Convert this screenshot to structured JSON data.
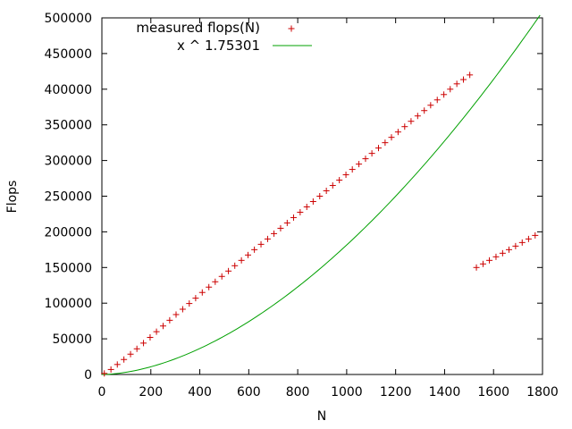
{
  "chart_data": {
    "type": "scatter",
    "title": "",
    "xlabel": "N",
    "ylabel": "Flops",
    "xlim": [
      0,
      1800
    ],
    "ylim": [
      0,
      500000
    ],
    "x_ticks": [
      0,
      200,
      400,
      600,
      800,
      1000,
      1200,
      1400,
      1600,
      1800
    ],
    "y_ticks": [
      0,
      50000,
      100000,
      150000,
      200000,
      250000,
      300000,
      350000,
      400000,
      450000,
      500000
    ],
    "grid": false,
    "legend_position": "top-left",
    "series": [
      {
        "name": "measured flops(N)",
        "kind": "points",
        "marker": "plus",
        "color": "#cc0000",
        "x": [
          10,
          37,
          63,
          90,
          117,
          143,
          170,
          197,
          223,
          250,
          277,
          303,
          330,
          357,
          383,
          410,
          437,
          463,
          490,
          517,
          543,
          570,
          597,
          623,
          650,
          677,
          703,
          730,
          757,
          783,
          810,
          837,
          863,
          890,
          917,
          943,
          970,
          997,
          1023,
          1050,
          1077,
          1103,
          1130,
          1157,
          1183,
          1210,
          1237,
          1263,
          1290,
          1317,
          1343,
          1370,
          1397,
          1423,
          1450,
          1477,
          1503,
          1530,
          1557,
          1583,
          1610,
          1637,
          1663,
          1690,
          1717,
          1743,
          1770
        ],
        "y": [
          1500,
          7000,
          14000,
          21000,
          28500,
          36000,
          44000,
          52000,
          60000,
          68000,
          76000,
          84000,
          91500,
          99500,
          107000,
          115000,
          122500,
          130000,
          137500,
          145000,
          152500,
          160000,
          167500,
          175000,
          182500,
          190000,
          197500,
          205000,
          212500,
          220000,
          227500,
          235000,
          242500,
          250000,
          257500,
          265000,
          272500,
          280000,
          287500,
          295000,
          302500,
          310000,
          317500,
          325000,
          332500,
          340000,
          347500,
          355000,
          362500,
          370000,
          377500,
          385000,
          392500,
          400000,
          407500,
          413500,
          420000,
          150000,
          155000,
          160000,
          165000,
          170000,
          175000,
          180000,
          185000,
          190000,
          195000
        ]
      },
      {
        "name": "x ^ 1.75301",
        "kind": "line",
        "color": "#00a000",
        "exponent": 1.75301,
        "x_range": [
          0,
          1790
        ]
      }
    ]
  }
}
